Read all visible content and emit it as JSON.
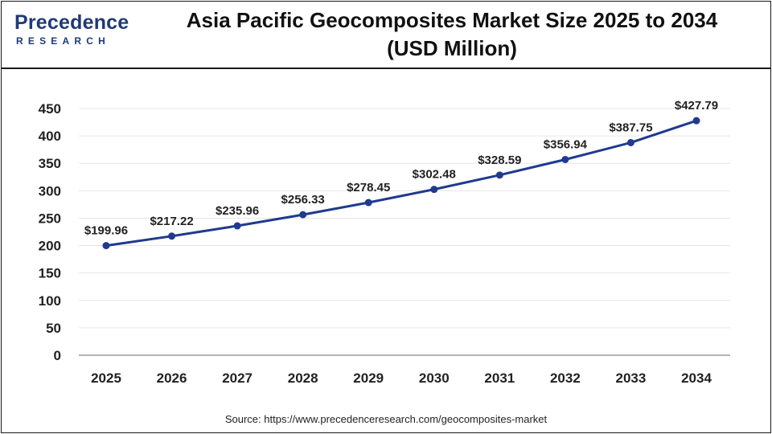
{
  "header": {
    "logo_top": "Precedence",
    "logo_bottom": "RESEARCH",
    "title_line1": "Asia Pacific Geocomposites Market Size 2025 to 2034",
    "title_line2": "(USD Million)"
  },
  "source": "Source: https://www.precedenceresearch.com/geocomposites-market",
  "colors": {
    "line": "#1f3a8f",
    "grid": "#e6e6e6",
    "axis": "#555555",
    "text": "#222222"
  },
  "chart_data": {
    "type": "line",
    "title": "Asia Pacific Geocomposites Market Size 2025 to 2034 (USD Million)",
    "categories": [
      "2025",
      "2026",
      "2027",
      "2028",
      "2029",
      "2030",
      "2031",
      "2032",
      "2033",
      "2034"
    ],
    "values": [
      199.96,
      217.22,
      235.96,
      256.33,
      278.45,
      302.48,
      328.59,
      356.94,
      387.75,
      427.79
    ],
    "data_labels": [
      "$199.96",
      "$217.22",
      "$235.96",
      "$256.33",
      "$278.45",
      "$302.48",
      "$328.59",
      "$356.94",
      "$387.75",
      "$427.79"
    ],
    "xlabel": "",
    "ylabel": "",
    "ylim": [
      0,
      450
    ],
    "yticks": [
      0,
      50,
      100,
      150,
      200,
      250,
      300,
      350,
      400,
      450
    ],
    "grid": "horizontal",
    "legend": "none"
  }
}
